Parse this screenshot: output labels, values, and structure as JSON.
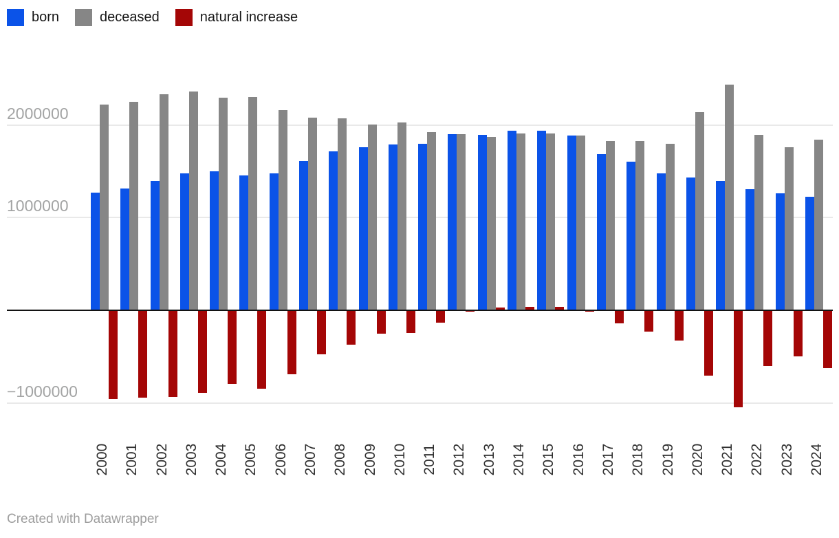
{
  "legend": {
    "items": [
      {
        "label": "born",
        "color": "#0b53e8"
      },
      {
        "label": "deceased",
        "color": "#868686"
      },
      {
        "label": "natural increase",
        "color": "#a40606"
      }
    ]
  },
  "y_axis": {
    "ticks": [
      {
        "label": "2000000",
        "value": 2000000
      },
      {
        "label": "1000000",
        "value": 1000000
      },
      {
        "label": "−1000000",
        "value": -1000000
      }
    ],
    "baseline_value": 0
  },
  "footer": {
    "attribution": "Created with Datawrapper"
  },
  "chart_data": {
    "type": "bar",
    "subtype": "grouped-column-with-negative-values",
    "categories": [
      "2000",
      "2001",
      "2002",
      "2003",
      "2004",
      "2005",
      "2006",
      "2007",
      "2008",
      "2009",
      "2010",
      "2011",
      "2012",
      "2013",
      "2014",
      "2015",
      "2016",
      "2017",
      "2018",
      "2019",
      "2020",
      "2021",
      "2022",
      "2023",
      "2024"
    ],
    "series": [
      {
        "name": "born",
        "color": "#0b53e8",
        "values": [
          1266800,
          1311604,
          1396967,
          1477301,
          1502477,
          1457376,
          1479637,
          1610122,
          1713947,
          1761687,
          1788948,
          1796629,
          1902084,
          1895822,
          1942683,
          1940579,
          1888729,
          1690307,
          1604344,
          1481074,
          1436514,
          1398253,
          1304087,
          1264382,
          1222408
        ]
      },
      {
        "name": "deceased",
        "color": "#868686",
        "values": [
          2225332,
          2254856,
          2332272,
          2365826,
          2295402,
          2303935,
          2166703,
          2080445,
          2075954,
          2010543,
          2028516,
          1925720,
          1906335,
          1871809,
          1912347,
          1908541,
          1891015,
          1826125,
          1828910,
          1798307,
          2138586,
          2441594,
          1898644,
          1760202,
          1844049
        ]
      },
      {
        "name": "natural increase",
        "color": "#a40606",
        "values": [
          -958532,
          -943252,
          -935305,
          -888525,
          -792925,
          -846559,
          -687066,
          -470323,
          -362007,
          -248856,
          -239568,
          -129091,
          -4251,
          24013,
          30336,
          32038,
          -2286,
          -135818,
          -224566,
          -317233,
          -702072,
          -1043341,
          -594557,
          -495820,
          -621641
        ]
      }
    ],
    "ylabel": "",
    "xlabel": "",
    "ylim": [
      -1100000,
      2500000
    ],
    "y_gridlines": [
      2000000,
      1000000,
      -1000000
    ],
    "grid": "horizontal",
    "legend_position": "top-left",
    "x_tick_rotation": -90,
    "attribution": "Created with Datawrapper"
  }
}
